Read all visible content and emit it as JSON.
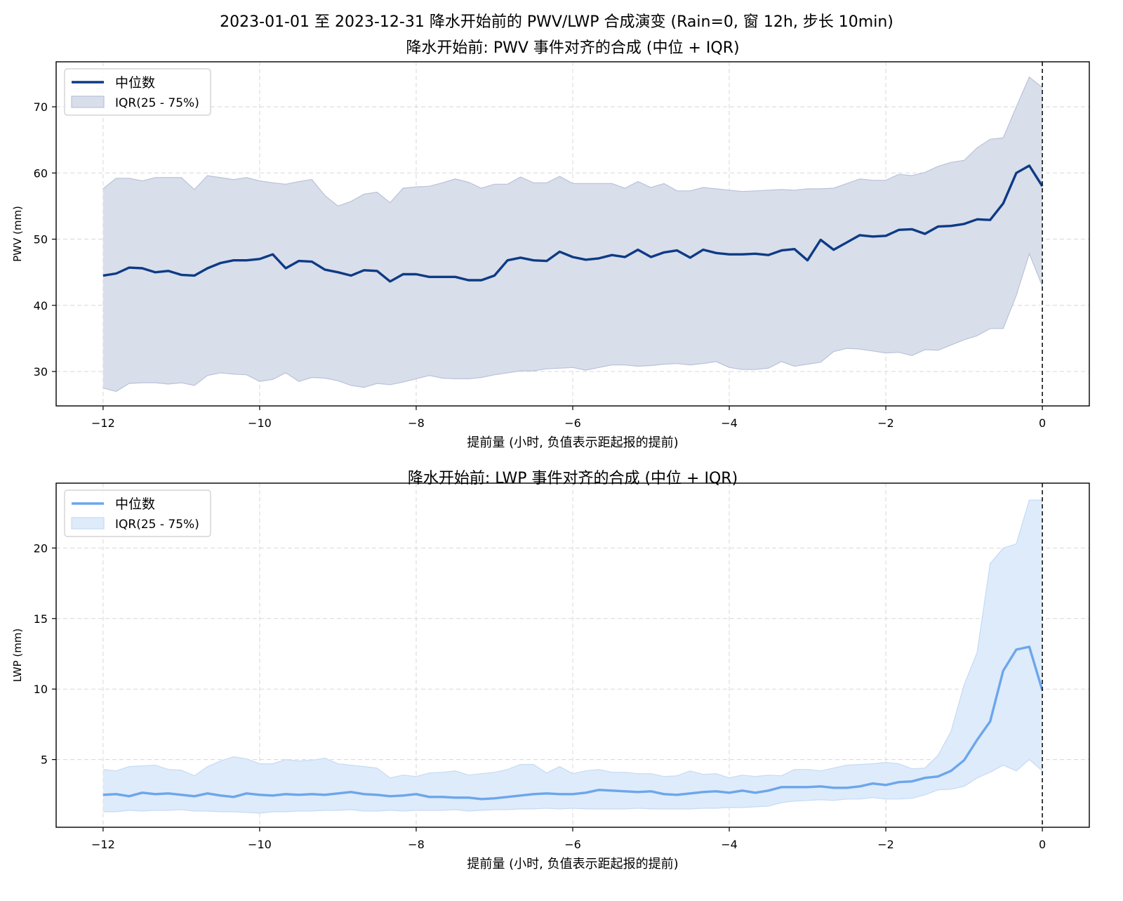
{
  "suptitle": "2023-01-01 至 2023-12-31  降水开始前的 PWV/LWP 合成演变 (Rain=0, 窗 12h, 步长 10min)",
  "chart_data": [
    {
      "type": "line",
      "title": "降水开始前: PWV 事件对齐的合成 (中位 + IQR)",
      "xlabel": "提前量 (小时, 负值表示距起报的提前)",
      "ylabel": "PWV (mm)",
      "xlim": [
        -12.6,
        0.6
      ],
      "ylim": [
        24.8,
        76.8
      ],
      "xticks": [
        -12,
        -10,
        -8,
        -6,
        -4,
        -2,
        0
      ],
      "xtick_labels": [
        "−12",
        "−10",
        "−8",
        "−6",
        "−4",
        "−2",
        "0"
      ],
      "yticks": [
        30,
        40,
        50,
        60,
        70
      ],
      "grid": true,
      "legend_location": "upper-left",
      "vline_x": 0,
      "series_style": {
        "line_color": "#0d3b85",
        "band_color": "#d9deeb",
        "band_edge": "#b9c2d8"
      },
      "x": [
        -12,
        -11.833,
        -11.667,
        -11.5,
        -11.333,
        -11.167,
        -11,
        -10.833,
        -10.667,
        -10.5,
        -10.333,
        -10.167,
        -10,
        -9.833,
        -9.667,
        -9.5,
        -9.333,
        -9.167,
        -9,
        -8.833,
        -8.667,
        -8.5,
        -8.333,
        -8.167,
        -8,
        -7.833,
        -7.667,
        -7.5,
        -7.333,
        -7.167,
        -7,
        -6.833,
        -6.667,
        -6.5,
        -6.333,
        -6.167,
        -6,
        -5.833,
        -5.667,
        -5.5,
        -5.333,
        -5.167,
        -5,
        -4.833,
        -4.667,
        -4.5,
        -4.333,
        -4.167,
        -4,
        -3.833,
        -3.667,
        -3.5,
        -3.333,
        -3.167,
        -3,
        -2.833,
        -2.667,
        -2.5,
        -2.333,
        -2.167,
        -2,
        -1.833,
        -1.667,
        -1.5,
        -1.333,
        -1.167,
        -1,
        -0.833,
        -0.667,
        -0.5,
        -0.333,
        -0.167,
        0
      ],
      "series": [
        {
          "name": "中位数",
          "role": "line",
          "values": [
            44.5,
            44.8,
            45.7,
            45.6,
            45.0,
            45.2,
            44.6,
            44.5,
            45.6,
            46.4,
            46.8,
            46.8,
            47.0,
            47.7,
            45.6,
            46.7,
            46.6,
            45.4,
            45.0,
            44.5,
            45.3,
            45.2,
            43.6,
            44.7,
            44.7,
            44.3,
            44.3,
            44.3,
            43.8,
            43.8,
            44.5,
            46.8,
            47.2,
            46.8,
            46.7,
            48.1,
            47.3,
            46.9,
            47.1,
            47.6,
            47.3,
            48.4,
            47.3,
            48.0,
            48.3,
            47.2,
            48.4,
            47.9,
            47.7,
            47.7,
            47.8,
            47.6,
            48.3,
            48.5,
            46.8,
            49.9,
            48.4,
            49.5,
            50.6,
            50.4,
            50.5,
            51.4,
            51.5,
            50.8,
            51.9,
            52.0,
            52.3,
            53.0,
            52.9,
            55.4,
            60.0,
            61.1,
            58.0
          ]
        },
        {
          "name": "IQR(25 - 75%)",
          "role": "band_lower",
          "values": [
            27.5,
            27.0,
            28.2,
            28.3,
            28.3,
            28.1,
            28.3,
            27.9,
            29.4,
            29.8,
            29.6,
            29.5,
            28.5,
            28.8,
            29.8,
            28.5,
            29.1,
            29.0,
            28.6,
            27.9,
            27.6,
            28.2,
            28.0,
            28.4,
            28.9,
            29.4,
            29.0,
            28.9,
            28.9,
            29.1,
            29.5,
            29.8,
            30.1,
            30.1,
            30.4,
            30.5,
            30.6,
            30.2,
            30.6,
            31.0,
            31.0,
            30.8,
            30.9,
            31.1,
            31.2,
            31.0,
            31.2,
            31.5,
            30.6,
            30.3,
            30.3,
            30.5,
            31.5,
            30.8,
            31.1,
            31.4,
            33.0,
            33.5,
            33.4,
            33.1,
            32.8,
            32.9,
            32.4,
            33.3,
            33.2,
            34.0,
            34.8,
            35.4,
            36.5,
            36.5,
            41.5,
            47.8,
            42.9
          ]
        },
        {
          "name": "IQR(25 - 75%)",
          "role": "band_upper",
          "values": [
            57.6,
            59.2,
            59.2,
            58.8,
            59.3,
            59.3,
            59.3,
            57.5,
            59.6,
            59.3,
            59.0,
            59.3,
            58.8,
            58.5,
            58.3,
            58.7,
            59.0,
            56.6,
            55.0,
            55.7,
            56.8,
            57.1,
            55.5,
            57.7,
            57.9,
            58.0,
            58.5,
            59.1,
            58.6,
            57.7,
            58.3,
            58.3,
            59.4,
            58.5,
            58.5,
            59.5,
            58.4,
            58.4,
            58.4,
            58.4,
            57.7,
            58.7,
            57.8,
            58.4,
            57.3,
            57.3,
            57.8,
            57.6,
            57.4,
            57.2,
            57.3,
            57.4,
            57.5,
            57.4,
            57.6,
            57.6,
            57.7,
            58.4,
            59.1,
            58.9,
            58.9,
            59.8,
            59.6,
            60.1,
            61.0,
            61.6,
            61.9,
            63.8,
            65.1,
            65.3,
            70.0,
            74.5,
            72.9
          ]
        }
      ],
      "legend": [
        {
          "label": "中位数",
          "kind": "line"
        },
        {
          "label": "IQR(25 - 75%)",
          "kind": "patch"
        }
      ]
    },
    {
      "type": "line",
      "title": "降水开始前: LWP 事件对齐的合成 (中位 + IQR)",
      "xlabel": "提前量 (小时, 负值表示距起报的提前)",
      "ylabel": "LWP (mm)",
      "xlim": [
        -12.6,
        0.6
      ],
      "ylim": [
        0.2,
        24.6
      ],
      "xticks": [
        -12,
        -10,
        -8,
        -6,
        -4,
        -2,
        0
      ],
      "xtick_labels": [
        "−12",
        "−10",
        "−8",
        "−6",
        "−4",
        "−2",
        "0"
      ],
      "yticks": [
        5,
        10,
        15,
        20
      ],
      "grid": true,
      "legend_location": "upper-left",
      "vline_x": 0,
      "series_style": {
        "line_color": "#6ca6eb",
        "band_color": "#deebfb",
        "band_edge": "#c6daf4"
      },
      "x": [
        -12,
        -11.833,
        -11.667,
        -11.5,
        -11.333,
        -11.167,
        -11,
        -10.833,
        -10.667,
        -10.5,
        -10.333,
        -10.167,
        -10,
        -9.833,
        -9.667,
        -9.5,
        -9.333,
        -9.167,
        -9,
        -8.833,
        -8.667,
        -8.5,
        -8.333,
        -8.167,
        -8,
        -7.833,
        -7.667,
        -7.5,
        -7.333,
        -7.167,
        -7,
        -6.833,
        -6.667,
        -6.5,
        -6.333,
        -6.167,
        -6,
        -5.833,
        -5.667,
        -5.5,
        -5.333,
        -5.167,
        -5,
        -4.833,
        -4.667,
        -4.5,
        -4.333,
        -4.167,
        -4,
        -3.833,
        -3.667,
        -3.5,
        -3.333,
        -3.167,
        -3,
        -2.833,
        -2.667,
        -2.5,
        -2.333,
        -2.167,
        -2,
        -1.833,
        -1.667,
        -1.5,
        -1.333,
        -1.167,
        -1,
        -0.833,
        -0.667,
        -0.5,
        -0.333,
        -0.167,
        0
      ],
      "series": [
        {
          "name": "中位数",
          "role": "line",
          "values": [
            2.5,
            2.55,
            2.4,
            2.65,
            2.55,
            2.6,
            2.5,
            2.4,
            2.6,
            2.45,
            2.35,
            2.6,
            2.5,
            2.45,
            2.55,
            2.5,
            2.55,
            2.5,
            2.6,
            2.7,
            2.55,
            2.5,
            2.4,
            2.45,
            2.55,
            2.35,
            2.35,
            2.3,
            2.3,
            2.2,
            2.25,
            2.35,
            2.45,
            2.55,
            2.6,
            2.55,
            2.55,
            2.65,
            2.85,
            2.8,
            2.75,
            2.7,
            2.75,
            2.55,
            2.5,
            2.6,
            2.7,
            2.75,
            2.65,
            2.8,
            2.65,
            2.8,
            3.05,
            3.05,
            3.05,
            3.1,
            3.0,
            3.0,
            3.1,
            3.3,
            3.2,
            3.4,
            3.45,
            3.7,
            3.8,
            4.2,
            4.95,
            6.4,
            7.7,
            11.3,
            12.8,
            13.0,
            9.9
          ]
        },
        {
          "name": "IQR(25 - 75%)",
          "role": "band_lower",
          "values": [
            1.3,
            1.3,
            1.4,
            1.35,
            1.4,
            1.4,
            1.45,
            1.35,
            1.35,
            1.3,
            1.3,
            1.25,
            1.2,
            1.3,
            1.3,
            1.35,
            1.35,
            1.4,
            1.4,
            1.45,
            1.35,
            1.35,
            1.4,
            1.35,
            1.4,
            1.4,
            1.4,
            1.45,
            1.35,
            1.4,
            1.45,
            1.45,
            1.5,
            1.5,
            1.55,
            1.5,
            1.55,
            1.5,
            1.5,
            1.5,
            1.5,
            1.55,
            1.5,
            1.5,
            1.5,
            1.5,
            1.55,
            1.55,
            1.6,
            1.6,
            1.65,
            1.7,
            1.95,
            2.05,
            2.1,
            2.15,
            2.1,
            2.2,
            2.2,
            2.3,
            2.2,
            2.2,
            2.25,
            2.5,
            2.85,
            2.9,
            3.1,
            3.7,
            4.1,
            4.6,
            4.2,
            5.0,
            4.2
          ]
        },
        {
          "name": "IQR(25 - 75%)",
          "role": "band_upper",
          "values": [
            4.3,
            4.2,
            4.5,
            4.55,
            4.6,
            4.3,
            4.25,
            3.85,
            4.5,
            4.9,
            5.2,
            5.05,
            4.7,
            4.7,
            5.0,
            4.9,
            4.95,
            5.1,
            4.7,
            4.6,
            4.5,
            4.4,
            3.7,
            3.9,
            3.8,
            4.05,
            4.1,
            4.2,
            3.9,
            4.0,
            4.1,
            4.3,
            4.65,
            4.65,
            4.05,
            4.5,
            4.0,
            4.2,
            4.3,
            4.1,
            4.1,
            4.0,
            4.0,
            3.8,
            3.85,
            4.2,
            3.95,
            4.0,
            3.7,
            3.9,
            3.8,
            3.9,
            3.85,
            4.3,
            4.3,
            4.2,
            4.4,
            4.6,
            4.65,
            4.7,
            4.8,
            4.7,
            4.35,
            4.4,
            5.3,
            7.0,
            10.3,
            12.6,
            18.9,
            20.0,
            20.3,
            23.4,
            23.4
          ]
        }
      ],
      "legend": [
        {
          "label": "中位数",
          "kind": "line"
        },
        {
          "label": "IQR(25 - 75%)",
          "kind": "patch"
        }
      ]
    }
  ]
}
